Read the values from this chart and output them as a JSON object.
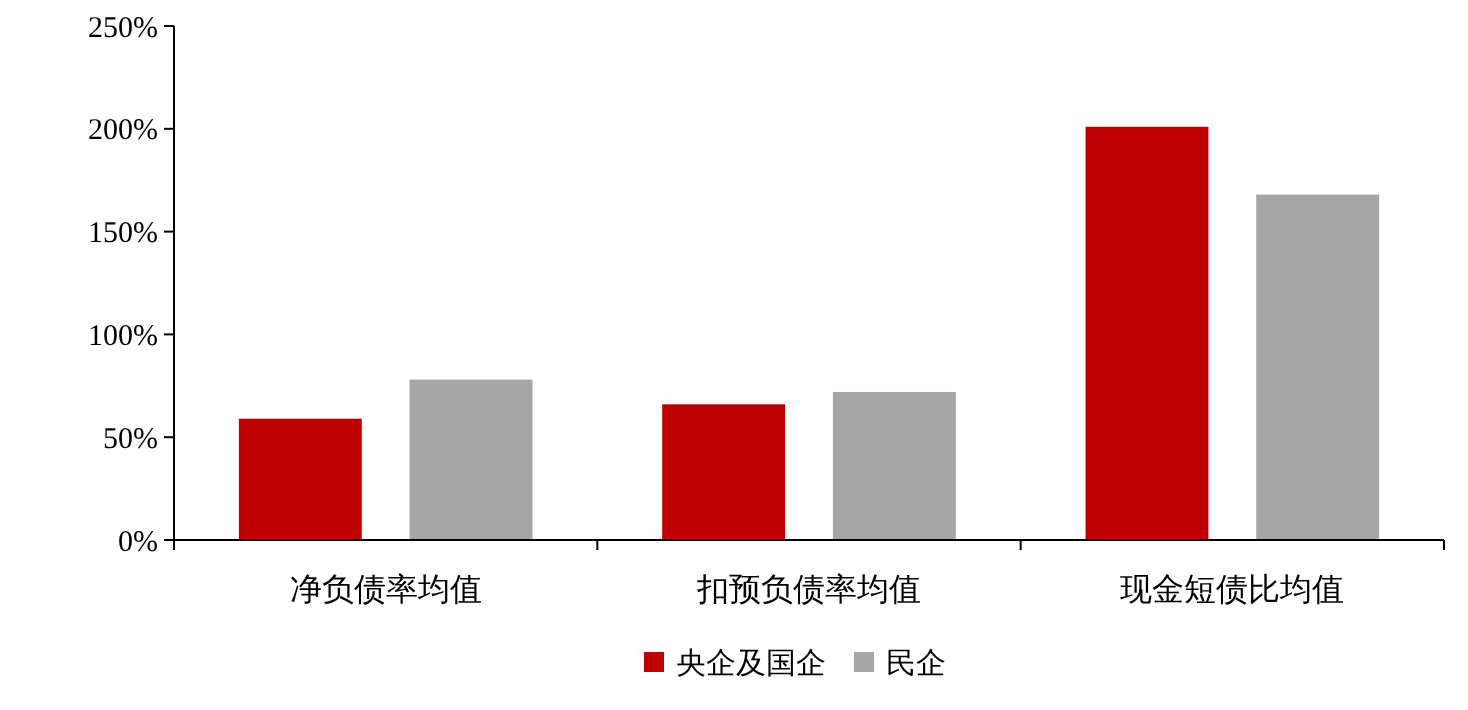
{
  "chart_data": {
    "type": "bar",
    "categories": [
      "净负债率均值",
      "扣预负债率均值",
      "现金短债比均值"
    ],
    "series": [
      {
        "name": "央企及国企",
        "color": "#c00000",
        "values": [
          59,
          66,
          201
        ]
      },
      {
        "name": "民企",
        "color": "#a6a6a6",
        "values": [
          78,
          72,
          168
        ]
      }
    ],
    "ylim": [
      0,
      250
    ],
    "yticks": [
      {
        "value": 0,
        "label": "0%"
      },
      {
        "value": 50,
        "label": "50%"
      },
      {
        "value": 100,
        "label": "100%"
      },
      {
        "value": 150,
        "label": "150%"
      },
      {
        "value": 200,
        "label": "200%"
      },
      {
        "value": 250,
        "label": "250%"
      }
    ],
    "grid": false,
    "legend": "bottom"
  }
}
